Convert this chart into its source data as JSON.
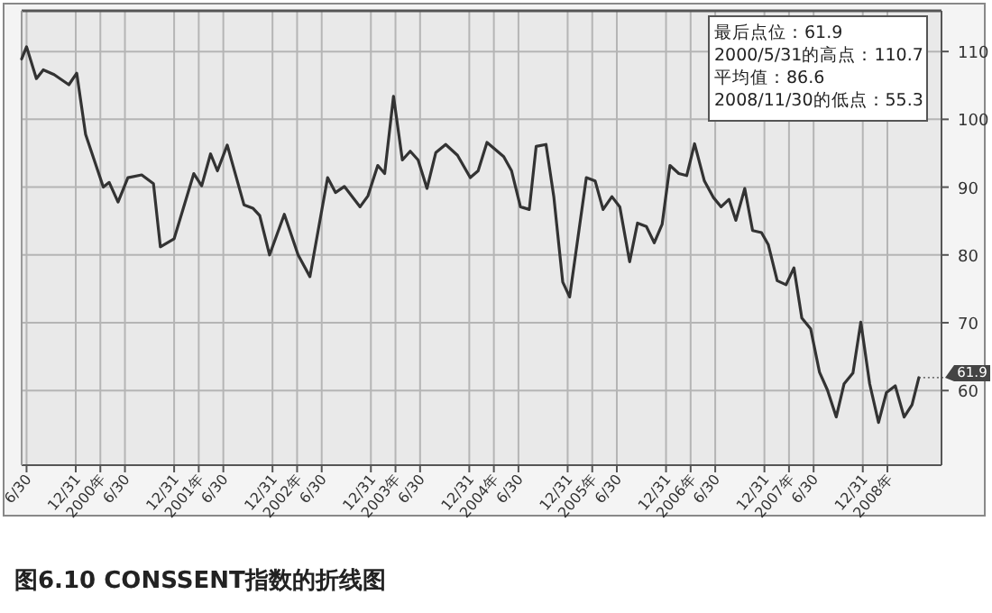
{
  "chart_data": {
    "type": "line",
    "title": "图6.10 CONSSENT指数的折线图",
    "annotations": [
      "最后点位：61.9",
      "2000/5/31的高点：110.7",
      "平均值：86.6",
      "2008/11/30的低点：55.3",
      {
        "text": "61.9",
        "x": 2008.57,
        "y": 61.9
      }
    ],
    "x": [
      1999.45,
      1999.5,
      1999.6,
      1999.67,
      1999.78,
      1999.93,
      2000.01,
      2000.1,
      2000.28,
      2000.34,
      2000.43,
      2000.53,
      2000.67,
      2000.79,
      2000.86,
      2001.0,
      2001.2,
      2001.28,
      2001.37,
      2001.44,
      2001.54,
      2001.71,
      2001.8,
      2001.87,
      2001.97,
      2002.12,
      2002.26,
      2002.38,
      2002.56,
      2002.64,
      2002.73,
      2002.89,
      2002.97,
      2003.07,
      2003.14,
      2003.23,
      2003.32,
      2003.4,
      2003.48,
      2003.57,
      2003.66,
      2003.76,
      2003.88,
      2004.01,
      2004.09,
      2004.18,
      2004.35,
      2004.43,
      2004.52,
      2004.61,
      2004.68,
      2004.78,
      2004.86,
      2004.95,
      2005.02,
      2005.19,
      2005.28,
      2005.36,
      2005.45,
      2005.53,
      2005.63,
      2005.71,
      2005.8,
      2005.88,
      2005.96,
      2006.04,
      2006.13,
      2006.21,
      2006.29,
      2006.39,
      2006.48,
      2006.56,
      2006.64,
      2006.71,
      2006.8,
      2006.88,
      2006.97,
      2007.04,
      2007.13,
      2007.22,
      2007.3,
      2007.38,
      2007.47,
      2007.56,
      2007.64,
      2007.73,
      2007.81,
      2007.9,
      2007.98,
      2008.07,
      2008.16,
      2008.24,
      2008.33,
      2008.42,
      2008.5,
      2008.57
    ],
    "series": [
      {
        "color": "#333333",
        "values": [
          108.9,
          110.7,
          106.0,
          107.3,
          106.6,
          105.1,
          106.8,
          97.8,
          90.0,
          90.7,
          87.8,
          91.4,
          91.8,
          90.5,
          81.2,
          82.4,
          92.0,
          90.2,
          94.9,
          92.4,
          96.2,
          87.4,
          86.9,
          85.8,
          80.0,
          86.0,
          80.0,
          76.8,
          91.4,
          89.2,
          90.1,
          87.1,
          88.7,
          93.2,
          92.0,
          103.4,
          94.0,
          95.3,
          94.0,
          89.8,
          95.1,
          96.3,
          94.7,
          91.4,
          92.4,
          96.6,
          94.5,
          92.4,
          87.1,
          86.7,
          96.0,
          96.3,
          88.5,
          76.0,
          73.8,
          91.4,
          90.9,
          86.7,
          88.6,
          87.1,
          79.0,
          84.7,
          84.2,
          81.8,
          84.5,
          93.2,
          92.0,
          91.7,
          96.4,
          90.9,
          88.5,
          87.1,
          88.2,
          85.1,
          89.8,
          83.6,
          83.3,
          81.5,
          76.2,
          75.6,
          78.1,
          70.7,
          69.1,
          62.7,
          60.1,
          56.1,
          61.0,
          62.6,
          70.1,
          61.0,
          55.3,
          59.7,
          60.7,
          56.1,
          57.9,
          61.9
        ]
      }
    ],
    "xlim": [
      1999.45,
      2008.8
    ],
    "ylim": [
      49,
      116
    ],
    "xticks": [
      {
        "value": 1999.5,
        "label": "6/30"
      },
      {
        "value": 2000,
        "label": "12/31"
      },
      {
        "value": 2000.25,
        "label": "2000年"
      },
      {
        "value": 2000.5,
        "label": "6/30"
      },
      {
        "value": 2001,
        "label": "12/31"
      },
      {
        "value": 2001.25,
        "label": "2001年"
      },
      {
        "value": 2001.5,
        "label": "6/30"
      },
      {
        "value": 2002,
        "label": "12/31"
      },
      {
        "value": 2002.25,
        "label": "2002年"
      },
      {
        "value": 2002.5,
        "label": "6/30"
      },
      {
        "value": 2003,
        "label": "12/31"
      },
      {
        "value": 2003.25,
        "label": "2003年"
      },
      {
        "value": 2003.5,
        "label": "6/30"
      },
      {
        "value": 2004,
        "label": "12/31"
      },
      {
        "value": 2004.25,
        "label": "2004年"
      },
      {
        "value": 2004.5,
        "label": "6/30"
      },
      {
        "value": 2005,
        "label": "12/31"
      },
      {
        "value": 2005.25,
        "label": "2005年"
      },
      {
        "value": 2005.5,
        "label": "6/30"
      },
      {
        "value": 2006,
        "label": "12/31"
      },
      {
        "value": 2006.25,
        "label": "2006年"
      },
      {
        "value": 2006.5,
        "label": "6/30"
      },
      {
        "value": 2007,
        "label": "12/31"
      },
      {
        "value": 2007.25,
        "label": "2007年"
      },
      {
        "value": 2007.5,
        "label": "6/30"
      },
      {
        "value": 2008,
        "label": "12/31"
      },
      {
        "value": 2008.25,
        "label": "2008年"
      }
    ],
    "yticks": [
      60,
      70,
      80,
      90,
      100,
      110
    ],
    "grid": true,
    "marker": "none",
    "line_style": "solid"
  }
}
